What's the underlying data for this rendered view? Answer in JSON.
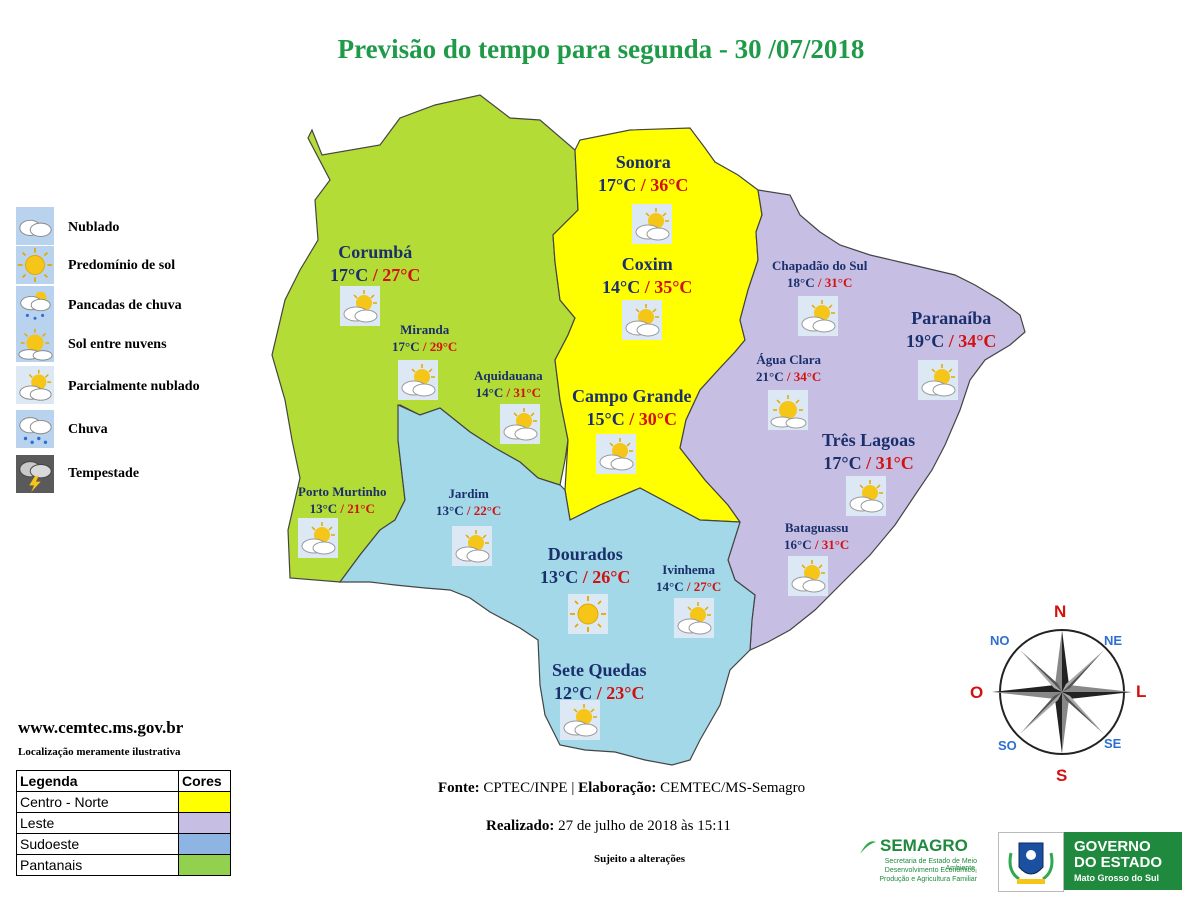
{
  "title": "Previsão do tempo para segunda - 30 /07/2018",
  "colors": {
    "centro_norte": "#ffff00",
    "leste": "#c6bfe3",
    "sudoeste": "#a3d8e8",
    "pantanais": "#b3dc37",
    "title": "#1f9a48",
    "min_temp": "#1a2f6b",
    "max_temp": "#d31111"
  },
  "cities": [
    {
      "id": "sonora",
      "name": "Sonora",
      "min": "17°C",
      "sep": "/",
      "max": "36°C",
      "icon": "partly-cloudy-icon"
    },
    {
      "id": "coxim",
      "name": "Coxim",
      "min": "14°C",
      "sep": "/",
      "max": "35°C",
      "icon": "partly-cloudy-icon"
    },
    {
      "id": "corumba",
      "name": "Corumbá",
      "min": "17°C",
      "sep": "/",
      "max": "27°C",
      "icon": "partly-cloudy-icon"
    },
    {
      "id": "chapadao",
      "name": "Chapadão  do Sul",
      "min": "18°C",
      "sep": "/",
      "max": "31°C",
      "icon": "partly-cloudy-icon"
    },
    {
      "id": "paranaiba",
      "name": "Paranaíba",
      "min": "19°C",
      "sep": "/",
      "max": "34°C",
      "icon": "partly-cloudy-icon"
    },
    {
      "id": "miranda",
      "name": "Miranda",
      "min": "17°C",
      "sep": "/",
      "max": "29°C",
      "icon": "partly-cloudy-icon"
    },
    {
      "id": "aquidauana",
      "name": "Aquidauana",
      "min": "14°C",
      "sep": "/",
      "max": "31°C",
      "icon": "partly-cloudy-icon"
    },
    {
      "id": "agua_clara",
      "name": "Água Clara",
      "min": "21°C",
      "sep": "/",
      "max": "34°C",
      "icon": "sun-clouds-icon"
    },
    {
      "id": "campo_grande",
      "name": "Campo  Grande",
      "min": "15°C",
      "sep": "/",
      "max": "30°C",
      "icon": "partly-cloudy-icon"
    },
    {
      "id": "tres_lagoas",
      "name": "Três Lagoas",
      "min": "17°C",
      "sep": "/",
      "max": "31°C",
      "icon": "partly-cloudy-icon"
    },
    {
      "id": "porto_murtinho",
      "name": "Porto Murtinho",
      "min": "13°C",
      "sep": "/",
      "max": "21°C",
      "icon": "partly-cloudy-icon"
    },
    {
      "id": "jardim",
      "name": "Jardim",
      "min": "13°C",
      "sep": "/",
      "max": "22°C",
      "icon": "partly-cloudy-icon"
    },
    {
      "id": "bataguassu",
      "name": "Bataguassu",
      "min": "16°C",
      "sep": "/",
      "max": "31°C",
      "icon": "partly-cloudy-icon"
    },
    {
      "id": "dourados",
      "name": "Dourados",
      "min": "13°C",
      "sep": "/",
      "max": "26°C",
      "icon": "sunny-icon"
    },
    {
      "id": "ivinhema",
      "name": "Ivinhema",
      "min": "14°C",
      "sep": "/",
      "max": "27°C",
      "icon": "partly-cloudy-icon"
    },
    {
      "id": "sete_quedas",
      "name": "Sete Quedas",
      "min": "12°C",
      "sep": "/",
      "max": "23°C",
      "icon": "partly-cloudy-icon"
    }
  ],
  "icon_legend": [
    {
      "label": "Nublado",
      "icon": "cloudy-icon"
    },
    {
      "label": "Predomínio de sol",
      "icon": "sunny-icon"
    },
    {
      "label": "Pancadas de chuva",
      "icon": "showers-icon"
    },
    {
      "label": "Sol entre nuvens",
      "icon": "sun-clouds-icon"
    },
    {
      "label": "Parcialmente nublado",
      "icon": "partly-cloudy-icon"
    },
    {
      "label": "Chuva",
      "icon": "rain-icon"
    },
    {
      "label": "Tempestade",
      "icon": "storm-icon"
    }
  ],
  "website": "www.cemtec.ms.gov.br",
  "location_note": "Localização  meramente  ilustrativa",
  "region_legend": {
    "header_region": "Legenda",
    "header_color": "Cores",
    "rows": [
      {
        "label": "Centro - Norte",
        "color": "#ffff00"
      },
      {
        "label": "Leste",
        "color": "#c6bfe3"
      },
      {
        "label": "Sudoeste",
        "color": "#8db4e2"
      },
      {
        "label": "Pantanais",
        "color": "#92d050"
      }
    ]
  },
  "footer": {
    "fonte_label": "Fonte:",
    "fonte_value": "CPTEC/INPE |",
    "elab_label": "Elaboração:",
    "elab_value": "CEMTEC/MS-Semagro",
    "realizado_label": "Realizado:",
    "realizado_value": "27 de julho de 2018 às 15:11",
    "sujeito": "Sujeito a alterações"
  },
  "compass": {
    "n": "N",
    "s": "S",
    "l": "L",
    "o": "O",
    "ne": "NE",
    "no": "NO",
    "se": "SE",
    "so": "SO"
  },
  "logos": {
    "semagro_name": "SEMAGRO",
    "semagro_sub1": "Secretaria de Estado de Meio Ambiente,",
    "semagro_sub2": "Desenvolvimento Econômico,",
    "semagro_sub3": "Produção e Agricultura Familiar",
    "gov_line1": "GOVERNO",
    "gov_line2": "DO ESTADO",
    "gov_line3": "Mato Grosso do Sul"
  }
}
